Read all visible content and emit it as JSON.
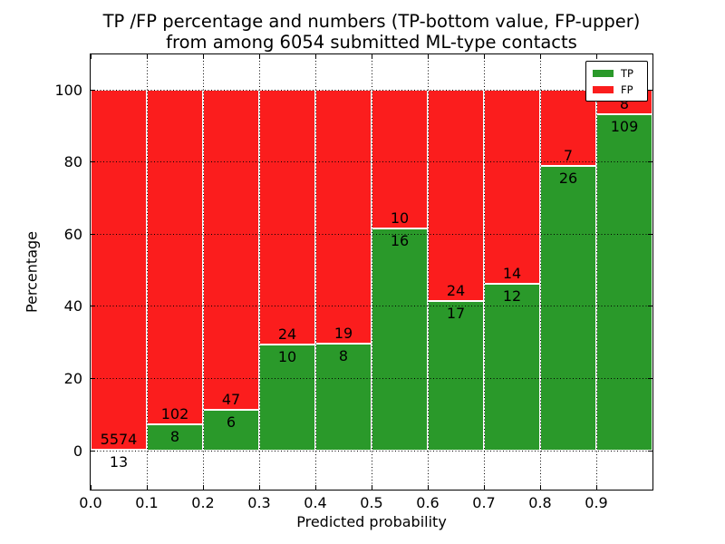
{
  "title": {
    "line1": "TP /FP percentage and numbers (TP-bottom value, FP-upper)",
    "line2": "from among 6054 submitted ML-type contacts"
  },
  "colors": {
    "tp_green": "#2a992a",
    "fp_red": "#fb1d1d",
    "bar_edge": "#ffffff",
    "grid": "#000000"
  },
  "legend": {
    "position": "upper right",
    "items": [
      {
        "label": "TP",
        "color": "#2a992a"
      },
      {
        "label": "FP",
        "color": "#fb1d1d"
      }
    ]
  },
  "chart_data": {
    "type": "bar",
    "stacked": true,
    "normalized": "each bar scaled to 100%",
    "title": "TP /FP percentage and numbers (TP-bottom value, FP-upper) from among 6054 submitted ML-type contacts",
    "xlabel": "Predicted probability",
    "ylabel": "Percentage",
    "total_contacts": 6054,
    "bins_start": [
      0.0,
      0.1,
      0.2,
      0.3,
      0.4,
      0.5,
      0.6,
      0.7,
      0.8,
      0.9
    ],
    "bin_width": 0.1,
    "series": [
      {
        "name": "TP",
        "color": "#2a992a",
        "values": [
          13,
          8,
          6,
          10,
          8,
          16,
          17,
          12,
          26,
          109
        ]
      },
      {
        "name": "FP",
        "color": "#fb1d1d",
        "values": [
          5574,
          102,
          47,
          24,
          19,
          10,
          24,
          14,
          7,
          8
        ]
      }
    ],
    "tp_percent_of_bar": [
      0.23,
      7.27,
      11.32,
      29.41,
      29.63,
      61.54,
      41.46,
      46.15,
      78.79,
      93.16
    ],
    "xticks": [
      "0.0",
      "0.1",
      "0.2",
      "0.3",
      "0.4",
      "0.5",
      "0.6",
      "0.7",
      "0.8",
      "0.9"
    ],
    "yticks": [
      "0",
      "20",
      "40",
      "60",
      "80",
      "100"
    ],
    "ytick_values": [
      0,
      20,
      40,
      60,
      80,
      100
    ],
    "xlim": [
      0.0,
      1.0
    ],
    "ylim": [
      -10.8,
      109.8
    ],
    "grid": "dotted black",
    "legend_position": "upper right"
  }
}
